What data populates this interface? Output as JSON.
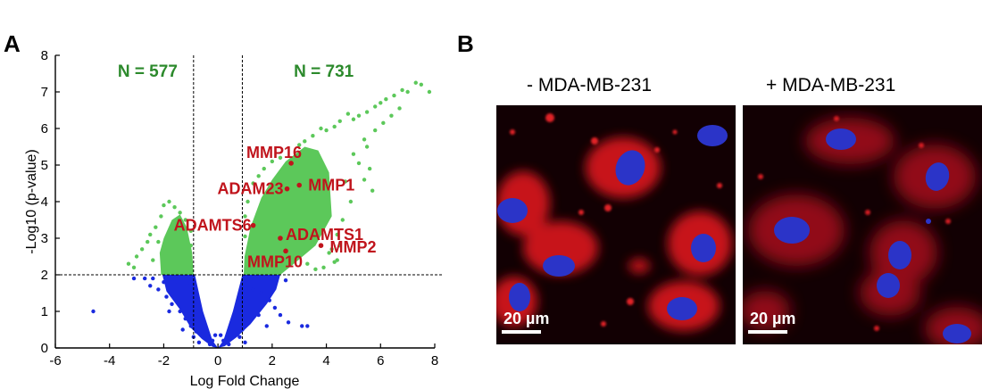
{
  "panel_a_label": "A",
  "panel_b_label": "B",
  "chart_data": {
    "type": "scatter",
    "title": "",
    "xlabel": "Log Fold Change",
    "ylabel": "-Log10 (p-value)",
    "xlim": [
      -6,
      8
    ],
    "ylim": [
      0,
      8
    ],
    "x_ticks": [
      -6,
      -4,
      -2,
      0,
      2,
      4,
      6,
      8
    ],
    "y_ticks": [
      0,
      1,
      2,
      3,
      4,
      5,
      6,
      7,
      8
    ],
    "grid": false,
    "thresholds": {
      "log_fold_change": [
        -0.9,
        0.9
      ],
      "neg_log10_p": 2
    },
    "colors": {
      "significant": "#5cc85a",
      "not_significant": "#1a2adf",
      "highlight": "#c0141c",
      "count_text": "#2c8a2c"
    },
    "counts": [
      {
        "label": "N = 577",
        "x": -3.7,
        "y": 7.8
      },
      {
        "label": "N = 731",
        "x": 2.8,
        "y": 7.8
      }
    ],
    "highlighted_genes": [
      {
        "name": "MMP16",
        "x": 2.7,
        "y": 5.05
      },
      {
        "name": "MMP1",
        "x": 3.0,
        "y": 4.45
      },
      {
        "name": "ADAM23",
        "x": 2.55,
        "y": 4.35
      },
      {
        "name": "ADAMTS6",
        "x": 1.3,
        "y": 3.35
      },
      {
        "name": "ADAMTS1",
        "x": 2.3,
        "y": 3.0
      },
      {
        "name": "MMP2",
        "x": 3.8,
        "y": 2.8
      },
      {
        "name": "MMP10",
        "x": 2.5,
        "y": 2.65
      }
    ],
    "series": [
      {
        "status": "significant",
        "points": [
          [
            7.8,
            7.0
          ],
          [
            7.5,
            7.2
          ],
          [
            7.3,
            7.25
          ],
          [
            7.0,
            7.0
          ],
          [
            6.8,
            7.05
          ],
          [
            6.5,
            6.9
          ],
          [
            6.2,
            6.8
          ],
          [
            6.0,
            6.7
          ],
          [
            5.8,
            6.6
          ],
          [
            5.5,
            6.45
          ],
          [
            5.2,
            6.35
          ],
          [
            5.0,
            6.25
          ],
          [
            6.7,
            6.55
          ],
          [
            6.4,
            6.35
          ],
          [
            6.1,
            6.15
          ],
          [
            5.8,
            5.95
          ],
          [
            5.4,
            5.7
          ],
          [
            4.8,
            6.4
          ],
          [
            4.5,
            6.2
          ],
          [
            4.3,
            6.05
          ],
          [
            4.0,
            5.95
          ],
          [
            3.8,
            6.0
          ],
          [
            3.5,
            5.8
          ],
          [
            3.2,
            5.65
          ],
          [
            3.0,
            5.55
          ],
          [
            5.0,
            5.3
          ],
          [
            5.2,
            5.05
          ],
          [
            5.4,
            4.6
          ],
          [
            5.7,
            4.3
          ],
          [
            5.6,
            4.9
          ],
          [
            5.5,
            5.5
          ],
          [
            4.9,
            4.0
          ],
          [
            4.7,
            4.55
          ],
          [
            4.6,
            3.5
          ],
          [
            4.4,
            3.1
          ],
          [
            4.2,
            2.7
          ],
          [
            4.3,
            2.35
          ],
          [
            4.1,
            2.6
          ],
          [
            3.3,
            2.3
          ],
          [
            3.6,
            2.15
          ],
          [
            3.9,
            2.2
          ],
          [
            4.4,
            2.4
          ],
          [
            4.5,
            2.8
          ],
          [
            2.3,
            5.2
          ],
          [
            2.0,
            5.1
          ],
          [
            1.7,
            4.9
          ],
          [
            1.5,
            4.7
          ],
          [
            1.3,
            4.5
          ],
          [
            1.1,
            4.0
          ],
          [
            1.0,
            3.6
          ],
          [
            1.0,
            3.05
          ],
          [
            -1.2,
            3.5
          ],
          [
            -1.4,
            3.7
          ],
          [
            -1.6,
            3.85
          ],
          [
            -1.8,
            4.0
          ],
          [
            -2.0,
            3.9
          ],
          [
            -2.1,
            3.6
          ],
          [
            -2.3,
            3.3
          ],
          [
            -2.5,
            3.1
          ],
          [
            -2.6,
            2.9
          ],
          [
            -2.8,
            2.7
          ],
          [
            -3.0,
            2.5
          ],
          [
            -3.1,
            2.2
          ],
          [
            -3.3,
            2.3
          ],
          [
            -2.2,
            2.9
          ],
          [
            -1.5,
            3.3
          ],
          [
            -1.3,
            3.15
          ],
          [
            -1.0,
            2.8
          ],
          [
            -1.0,
            3.2
          ],
          [
            -1.9,
            2.5
          ],
          [
            -2.4,
            2.4
          ]
        ]
      },
      {
        "status": "not_significant",
        "points": [
          [
            -4.6,
            1.0
          ],
          [
            -3.1,
            1.9
          ],
          [
            -2.7,
            1.9
          ],
          [
            -2.4,
            1.9
          ],
          [
            -2.2,
            1.6
          ],
          [
            -1.9,
            1.4
          ],
          [
            -1.7,
            1.2
          ],
          [
            -1.4,
            1.0
          ],
          [
            -1.2,
            0.8
          ],
          [
            -1.0,
            0.6
          ],
          [
            -0.8,
            0.45
          ],
          [
            -1.1,
            1.7
          ],
          [
            -1.6,
            1.8
          ],
          [
            -0.9,
            1.4
          ],
          [
            -0.8,
            0.9
          ],
          [
            -0.9,
            0.3
          ],
          [
            -0.7,
            0.15
          ],
          [
            -1.3,
            0.5
          ],
          [
            -2.0,
            1.8
          ],
          [
            -2.5,
            1.7
          ],
          [
            -1.8,
            1.0
          ],
          [
            1.0,
            1.7
          ],
          [
            1.3,
            1.6
          ],
          [
            1.6,
            1.5
          ],
          [
            1.9,
            1.3
          ],
          [
            2.1,
            1.1
          ],
          [
            2.3,
            0.9
          ],
          [
            2.6,
            0.7
          ],
          [
            3.1,
            0.6
          ],
          [
            3.3,
            0.6
          ],
          [
            1.1,
            1.9
          ],
          [
            1.5,
            1.9
          ],
          [
            2.0,
            1.9
          ],
          [
            2.5,
            1.85
          ],
          [
            1.2,
            0.8
          ],
          [
            0.9,
            0.5
          ],
          [
            0.8,
            0.3
          ],
          [
            1.0,
            0.15
          ],
          [
            1.5,
            0.9
          ],
          [
            1.8,
            0.6
          ],
          [
            0.4,
            0.1
          ],
          [
            -0.3,
            0.1
          ],
          [
            0.2,
            0.2
          ],
          [
            -0.2,
            0.2
          ],
          [
            0.1,
            0.35
          ],
          [
            -0.1,
            0.35
          ]
        ]
      }
    ]
  },
  "micrographs": [
    {
      "title": "- MDA-MB-231",
      "scale_label": "20 µm"
    },
    {
      "title": "+ MDA-MB-231",
      "scale_label": "20 µm"
    }
  ]
}
